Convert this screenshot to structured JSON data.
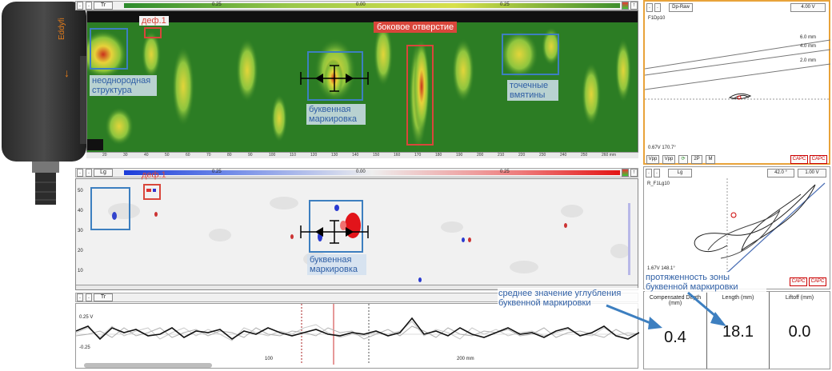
{
  "cscan_top": {
    "channel": "Tr",
    "scale_ticks": [
      "0.25",
      "0.00",
      "0.25"
    ],
    "ruler_ticks": [
      "20",
      "30",
      "40",
      "50",
      "60",
      "70",
      "80",
      "90",
      "100",
      "110",
      "120",
      "130",
      "140",
      "150",
      "160",
      "170",
      "180",
      "190",
      "200",
      "210",
      "220",
      "230",
      "240",
      "250",
      "260 mm"
    ],
    "labels": {
      "def1": "деф.1",
      "side_hole": "боковое отверстие",
      "nonuniform": "неоднородная структура",
      "letter_marking": "буквенная маркировка",
      "dents": "точечные вмятины"
    }
  },
  "cscan_bottom": {
    "channel": "Lg",
    "scale_ticks": [
      "0.25",
      "0.00",
      "0.25"
    ],
    "yaxis": [
      "50",
      "40",
      "30",
      "20",
      "10"
    ],
    "labels": {
      "def1": "деф.1",
      "letter_marking": "буквенная маркировка"
    }
  },
  "strip": {
    "channel": "Tr",
    "y_ticks": [
      "0.25 V",
      "-0.25"
    ],
    "x_ticks": [
      "100",
      "200 mm"
    ]
  },
  "impedance_top": {
    "mode": "Dp-Raw",
    "voltage": "4.00 V",
    "name": "F1Dp10",
    "curve_labels": [
      "6.0 mm",
      "4.0 mm",
      "2.0 mm"
    ],
    "readout": "0.67V 170.7°",
    "buttons": [
      "Vpp",
      "Vpp",
      "2P",
      "M"
    ],
    "capc": [
      "CAPC",
      "CAPC"
    ]
  },
  "impedance_bottom": {
    "channel": "Lg",
    "angle": "42.0 °",
    "voltage": "1.00 V",
    "name": "R_F1Lg10",
    "readout": "1.67V 148.1°",
    "capc": [
      "CAPC",
      "CAPC"
    ]
  },
  "measurements": {
    "headers": [
      "Compensated Depth (mm)",
      "Length (mm)",
      "Liftoff (mm)"
    ],
    "values": [
      "0.4",
      "18.1",
      "0.0"
    ]
  },
  "annotations": {
    "avg_depth": "среднее значение углубления буквенной маркировки",
    "zone_length": "протяженность зоны буквенной маркировки"
  },
  "probe": {
    "brand": "Eddyfi"
  },
  "colors": {
    "accent_blue": "#3d7fc0",
    "defect_red": "#d9463b",
    "panel_orange": "#e8a33a"
  }
}
